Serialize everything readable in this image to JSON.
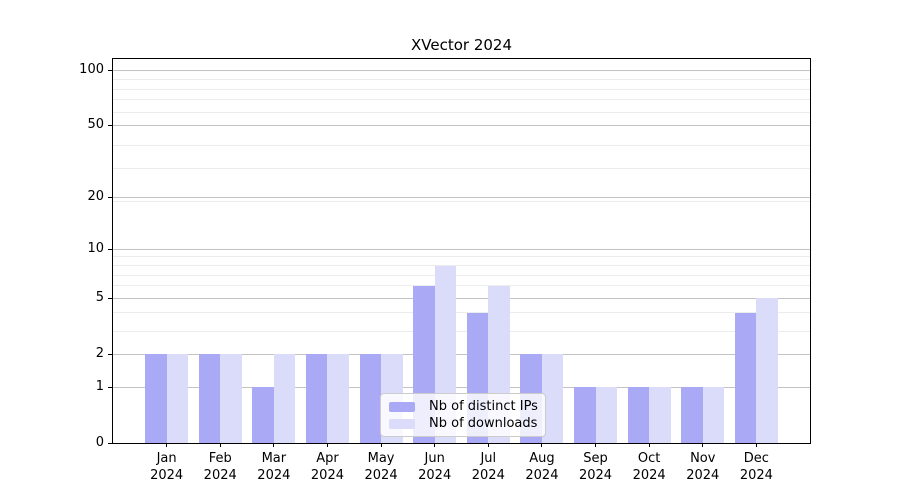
{
  "chart_data": {
    "type": "bar",
    "title": "XVector 2024",
    "categories": [
      "Jan 2024",
      "Feb 2024",
      "Mar 2024",
      "Apr 2024",
      "May 2024",
      "Jun 2024",
      "Jul 2024",
      "Aug 2024",
      "Sep 2024",
      "Oct 2024",
      "Nov 2024",
      "Dec 2024"
    ],
    "series": [
      {
        "name": "Nb of distinct IPs",
        "color": "#a9a9f5",
        "values": [
          2,
          2,
          1,
          2,
          2,
          6,
          4,
          2,
          1,
          1,
          1,
          4
        ]
      },
      {
        "name": "Nb of downloads",
        "color": "#dbdbfa",
        "values": [
          2,
          2,
          2,
          2,
          2,
          8,
          6,
          2,
          1,
          1,
          1,
          5
        ]
      }
    ],
    "xlabel": "",
    "ylabel": "",
    "yscale": "log10(1+y)",
    "ylim": [
      0,
      115
    ],
    "y_major_ticks": [
      0,
      1,
      2,
      5,
      10,
      20,
      50,
      100
    ],
    "y_minor_gridlines": [
      3,
      4,
      6,
      7,
      8,
      9,
      19,
      29,
      39,
      59,
      69,
      79,
      89
    ],
    "grid": "horizontal",
    "legend_position": "inside-lower-center",
    "colors": {
      "major_grid": "#c3c3c3",
      "minor_grid": "#ececec",
      "spine": "#000000",
      "background": "#ffffff",
      "text": "#000000"
    }
  }
}
